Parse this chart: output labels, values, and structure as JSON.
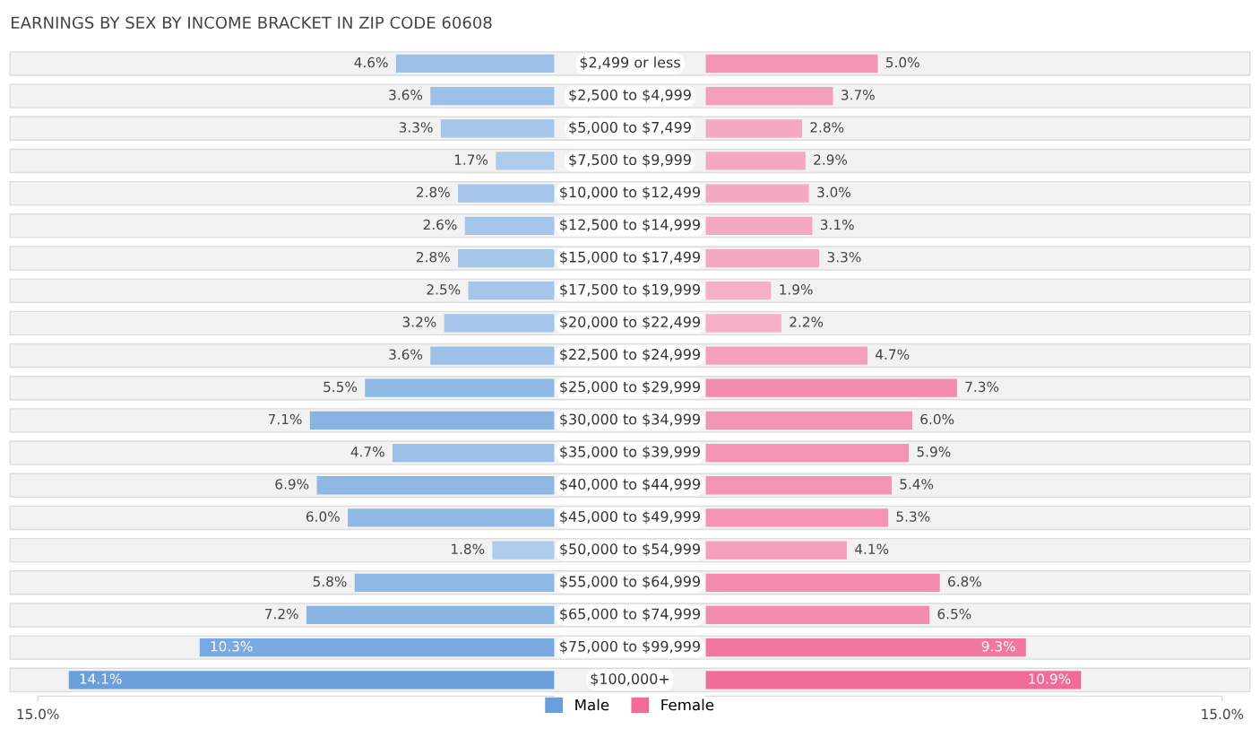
{
  "chart_data": [
    {
      "type": "bar",
      "orientation": "horizontal",
      "title": "EARNINGS BY SEX BY INCOME BRACKET IN ZIP CODE 60608",
      "categories": [
        "$2,499 or less",
        "$2,500 to $4,999",
        "$5,000 to $7,499",
        "$7,500 to $9,999",
        "$10,000 to $12,499",
        "$12,500 to $14,999",
        "$15,000 to $17,499",
        "$17,500 to $19,999",
        "$20,000 to $22,499",
        "$22,500 to $24,999",
        "$25,000 to $29,999",
        "$30,000 to $34,999",
        "$35,000 to $39,999",
        "$40,000 to $44,999",
        "$45,000 to $49,999",
        "$50,000 to $54,999",
        "$55,000 to $64,999",
        "$65,000 to $74,999",
        "$75,000 to $99,999",
        "$100,000+"
      ],
      "series": [
        {
          "name": "Male",
          "color": "#6a9fdc",
          "values": [
            4.6,
            3.6,
            3.3,
            1.7,
            2.8,
            2.6,
            2.8,
            2.5,
            3.2,
            3.6,
            5.5,
            7.1,
            4.7,
            6.9,
            6.0,
            1.8,
            5.8,
            7.2,
            10.3,
            14.1
          ],
          "colors": [
            "#9cc0e8",
            "#9cc0e8",
            "#a5c5ea",
            "#adcbeb",
            "#a5c5ea",
            "#a5c5ea",
            "#a5c5ea",
            "#a5c5ea",
            "#a5c5ea",
            "#9cc0e8",
            "#90b8e5",
            "#88b3e3",
            "#9cc0e8",
            "#90b8e5",
            "#90b8e5",
            "#adcbeb",
            "#90b8e5",
            "#88b3e3",
            "#78a9e0",
            "#6a9fdc"
          ],
          "value_labels": [
            "4.6%",
            "3.6%",
            "3.3%",
            "1.7%",
            "2.8%",
            "2.6%",
            "2.8%",
            "2.5%",
            "3.2%",
            "3.6%",
            "5.5%",
            "7.1%",
            "4.7%",
            "6.9%",
            "6.0%",
            "1.8%",
            "5.8%",
            "7.2%",
            "10.3%",
            "14.1%"
          ]
        }
      ],
      "xlim": [
        15,
        0
      ],
      "xticks": [
        {
          "value": 15,
          "label": "15.0%"
        }
      ],
      "grid": false
    },
    {
      "type": "bar",
      "orientation": "horizontal",
      "categories": [
        null,
        null,
        null,
        null,
        null,
        null,
        null,
        null,
        null,
        null,
        null,
        null,
        null,
        null,
        null,
        null,
        null,
        null,
        null,
        null
      ],
      "series": [
        {
          "name": "Female",
          "color": "#f06b97",
          "values": [
            5.0,
            3.7,
            2.8,
            2.9,
            3.0,
            3.1,
            3.3,
            1.9,
            2.2,
            4.7,
            7.3,
            6.0,
            5.9,
            5.4,
            5.3,
            4.1,
            6.8,
            6.5,
            9.3,
            10.9
          ],
          "colors": [
            "#f394b3",
            "#f4a0bb",
            "#f4a9c0",
            "#f4a9c0",
            "#f4a9c0",
            "#f4a9c0",
            "#f4a9c0",
            "#f5b0c6",
            "#f5b0c6",
            "#f4a0bb",
            "#f28bad",
            "#f394b3",
            "#f394b3",
            "#f394b3",
            "#f394b3",
            "#f4a0bb",
            "#f28bad",
            "#f28bad",
            "#f177a0",
            "#f06b97"
          ],
          "value_labels": [
            "5.0%",
            "3.7%",
            "2.8%",
            "2.9%",
            "3.0%",
            "3.1%",
            "3.3%",
            "1.9%",
            "2.2%",
            "4.7%",
            "7.3%",
            "6.0%",
            "5.9%",
            "5.4%",
            "5.3%",
            "4.1%",
            "6.8%",
            "6.5%",
            "9.3%",
            "10.9%"
          ]
        }
      ],
      "xlim": [
        0,
        15
      ],
      "xticks": [
        {
          "value": 15,
          "label": "15.0%"
        }
      ],
      "tick_labels": "x",
      "legend": "bottom",
      "grid": false
    }
  ]
}
